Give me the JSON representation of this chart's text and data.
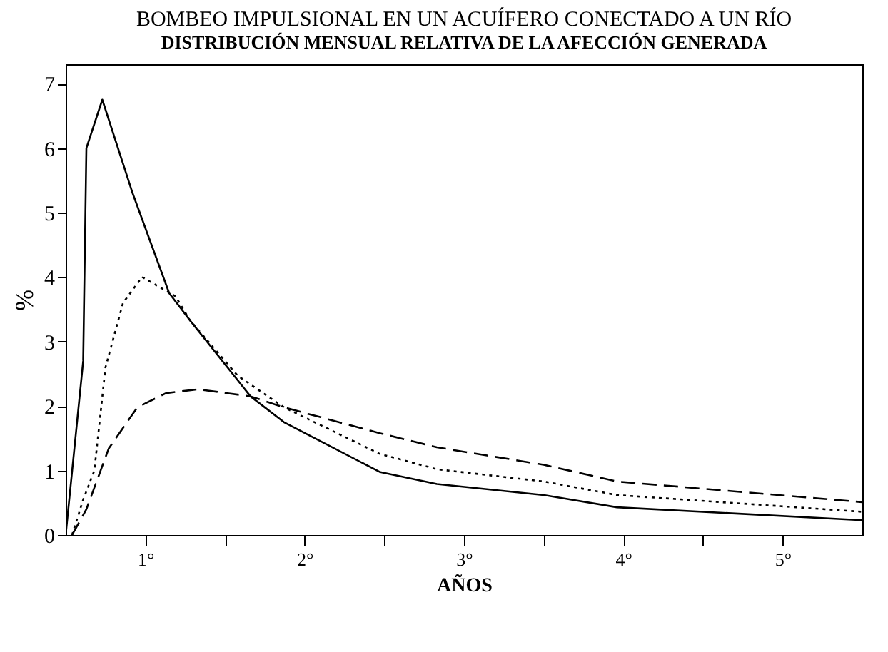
{
  "chart_data": {
    "type": "line",
    "title": "BOMBEO IMPULSIONAL EN UN ACUÍFERO CONECTADO A UN RÍO",
    "subtitle": "DISTRIBUCIÓN MENSUAL RELATIVA DE LA AFECCIÓN GENERADA",
    "xlabel": "AÑOS",
    "ylabel": "%",
    "xlim": [
      0.5,
      5.5
    ],
    "ylim": [
      0,
      7.3
    ],
    "yticks": [
      0,
      1,
      2,
      3,
      4,
      5,
      6,
      7
    ],
    "xticks": [
      {
        "value": 1,
        "label": "1°"
      },
      {
        "value": 1.5,
        "label": null
      },
      {
        "value": 2,
        "label": "2°"
      },
      {
        "value": 2.5,
        "label": null
      },
      {
        "value": 3,
        "label": "3°"
      },
      {
        "value": 3.5,
        "label": null
      },
      {
        "value": 4,
        "label": "4°"
      },
      {
        "value": 4.5,
        "label": null
      },
      {
        "value": 5,
        "label": "5°"
      }
    ],
    "grid": false,
    "marker": "none",
    "series": [
      {
        "color": "#000000",
        "line_style": "solid",
        "x": [
          0.5,
          0.61,
          0.63,
          0.73,
          0.92,
          1.15,
          1.28,
          1.58,
          1.66,
          1.87,
          2.47,
          2.83,
          3.5,
          3.96,
          5.5
        ],
        "values": [
          0,
          2.7,
          6.0,
          6.75,
          5.3,
          3.75,
          3.33,
          2.4,
          2.15,
          1.75,
          0.98,
          0.79,
          0.62,
          0.43,
          0.23
        ]
      },
      {
        "color": "#000000",
        "line_style": "dotted",
        "x": [
          0.54,
          0.61,
          0.68,
          0.75,
          0.86,
          0.98,
          1.19,
          1.28,
          1.58,
          1.87,
          2.47,
          2.83,
          3.5,
          3.96,
          5.5
        ],
        "values": [
          0,
          0.55,
          1.0,
          2.6,
          3.6,
          4.0,
          3.7,
          3.33,
          2.47,
          1.98,
          1.26,
          1.02,
          0.83,
          0.62,
          0.36
        ]
      },
      {
        "color": "#000000",
        "line_style": "dashed",
        "x": [
          0.54,
          0.63,
          0.77,
          0.95,
          1.13,
          1.33,
          1.66,
          1.87,
          2.47,
          2.83,
          3.5,
          3.96,
          5.5
        ],
        "values": [
          0,
          0.4,
          1.34,
          1.98,
          2.2,
          2.26,
          2.15,
          1.98,
          1.58,
          1.36,
          1.09,
          0.83,
          0.51
        ]
      }
    ]
  }
}
